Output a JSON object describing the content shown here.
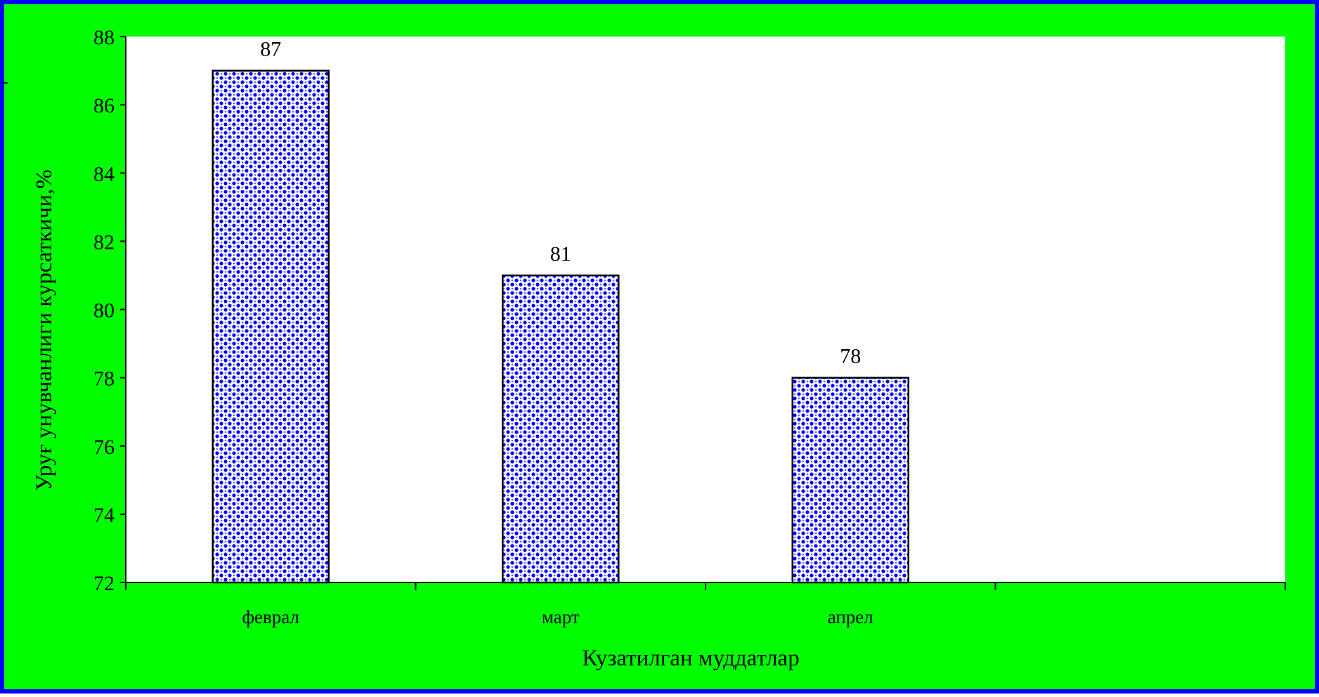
{
  "chart_data": {
    "type": "bar",
    "categories": [
      "феврал",
      "март",
      "апрел",
      ""
    ],
    "values": [
      87,
      81,
      78,
      null
    ],
    "data_labels": [
      "87",
      "81",
      "78",
      ""
    ],
    "title": "",
    "xlabel": "Кузатилган муддатлар",
    "ylabel": "Уруғ унувчанлиги курсаткичи,%",
    "ylim": [
      72,
      88
    ],
    "yticks": [
      72,
      74,
      76,
      78,
      80,
      82,
      84,
      86,
      88
    ],
    "grid": false,
    "legend": "none"
  },
  "colors": {
    "chart_area_background": "#00ff00",
    "chart_area_border": "#0000ff",
    "plot_area_background": "#ffffff",
    "bar_pattern_foreground": "#0000ff",
    "bar_pattern_background": "#ffffff",
    "bar_outline": "#000000",
    "axis_line": "#000000"
  },
  "bar_fill_pattern": "checkerboard-dots"
}
